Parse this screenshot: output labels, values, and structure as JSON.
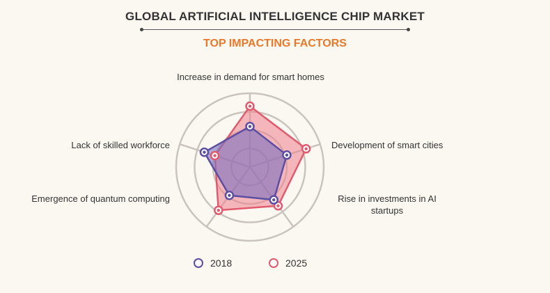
{
  "chart_data": {
    "type": "radar",
    "title": "GLOBAL ARTIFICIAL INTELLIGENCE CHIP MARKET",
    "subtitle": "TOP IMPACTING FACTORS",
    "axes": [
      "Increase in demand for smart homes",
      "Development of smart cities",
      "Rise in investments in AI startups",
      "Emergence of quantum computing",
      "Lack of skilled workforce"
    ],
    "rlim": [
      0,
      4
    ],
    "ring_count": 4,
    "series": [
      {
        "name": "2018",
        "values": [
          2.2,
          2.1,
          2.2,
          1.9,
          2.6
        ]
      },
      {
        "name": "2025",
        "values": [
          3.3,
          3.2,
          2.6,
          2.9,
          2.0
        ]
      }
    ],
    "legend_position": "bottom",
    "colors": {
      "2018": {
        "stroke": "#5b4ea3",
        "fill": "#7a6fbf"
      },
      "2025": {
        "stroke": "#e05b6e",
        "fill": "#ef7f8c"
      },
      "grid": "#c9c4bd",
      "title": "#333333",
      "subtitle": "#e8782a",
      "background": "#fbf8f1"
    }
  }
}
